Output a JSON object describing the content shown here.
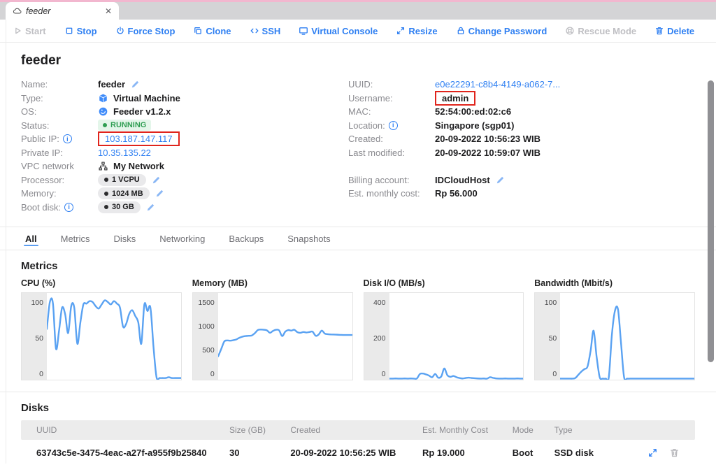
{
  "tab": {
    "title": "feeder",
    "close_glyph": "✕"
  },
  "toolbar": {
    "buttons": [
      {
        "label": "Start",
        "icon": "play-icon",
        "disabled": true
      },
      {
        "label": "Stop",
        "icon": "stop-icon"
      },
      {
        "label": "Force Stop",
        "icon": "power-icon"
      },
      {
        "label": "Clone",
        "icon": "clone-icon"
      },
      {
        "label": "SSH",
        "icon": "code-icon"
      },
      {
        "label": "Virtual Console",
        "icon": "monitor-icon"
      },
      {
        "label": "Resize",
        "icon": "resize-icon"
      },
      {
        "label": "Change Password",
        "icon": "lock-icon"
      },
      {
        "label": "Rescue Mode",
        "icon": "rescue-icon",
        "disabled": true
      },
      {
        "label": "Delete",
        "icon": "trash-icon"
      }
    ]
  },
  "header": {
    "title": "feeder"
  },
  "details": {
    "left": [
      {
        "label": "Name:",
        "value": "feeder",
        "edit": true
      },
      {
        "label": "Type:",
        "value": "Virtual Machine",
        "icon": "cube-icon"
      },
      {
        "label": "OS:",
        "value": "Feeder v1.2.x",
        "icon": "os-icon"
      },
      {
        "label": "Status:",
        "value": "RUNNING",
        "status": true
      },
      {
        "label": "Public IP:",
        "info": true,
        "value": "103.187.147.117",
        "link": true,
        "redbox": true
      },
      {
        "label": "Private IP:",
        "value": "10.35.135.22",
        "link": true
      },
      {
        "label": "VPC network",
        "value": "My Network",
        "icon": "network-icon"
      },
      {
        "label": "Processor:",
        "value": "1 VCPU",
        "pill": true,
        "edit": true
      },
      {
        "label": "Memory:",
        "value": "1024 MB",
        "pill": true,
        "edit": true
      },
      {
        "label": "Boot disk:",
        "info": true,
        "value": "30 GB",
        "pill": true,
        "edit": true
      }
    ],
    "right": [
      {
        "label": "UUID:",
        "value": "e0e22291-c8b4-4149-a062-7...",
        "link": true
      },
      {
        "label": "Username:",
        "value": "admin",
        "redbox": true
      },
      {
        "label": "MAC:",
        "value": "52:54:00:ed:02:c6"
      },
      {
        "label": "Location:",
        "info": true,
        "value": "Singapore (sgp01)"
      },
      {
        "label": "Created:",
        "value": "20-09-2022 10:56:23 WIB"
      },
      {
        "label": "Last modified:",
        "value": "20-09-2022 10:59:07 WIB"
      },
      {
        "gap": true
      },
      {
        "label": "Billing account:",
        "value": "IDCloudHost",
        "edit": true
      },
      {
        "label": "Est. monthly cost:",
        "value": "Rp 56.000"
      }
    ]
  },
  "tabs": [
    {
      "label": "All",
      "active": true
    },
    {
      "label": "Metrics"
    },
    {
      "label": "Disks"
    },
    {
      "label": "Networking"
    },
    {
      "label": "Backups"
    },
    {
      "label": "Snapshots"
    }
  ],
  "metrics_section": {
    "title": "Metrics"
  },
  "chart_data": [
    {
      "type": "line",
      "title": "CPU (%)",
      "ylabel": "",
      "yticks": [
        100,
        50,
        0
      ],
      "ylim": [
        0,
        106
      ],
      "grid": false,
      "legend": "none",
      "values": [
        62,
        95,
        93,
        38,
        60,
        88,
        80,
        57,
        90,
        88,
        44,
        70,
        92,
        93,
        96,
        95,
        90,
        87,
        92,
        97,
        95,
        92,
        96,
        93,
        88,
        65,
        68,
        80,
        85,
        78,
        70,
        44,
        92,
        84,
        88,
        40,
        3,
        2,
        2,
        2,
        3,
        2,
        2,
        2,
        2
      ]
    },
    {
      "type": "line",
      "title": "Memory (MB)",
      "ylabel": "",
      "yticks": [
        1500,
        1000,
        500,
        0
      ],
      "ylim": [
        0,
        1590
      ],
      "grid": false,
      "legend": "none",
      "values": [
        430,
        560,
        700,
        720,
        715,
        725,
        740,
        770,
        790,
        800,
        805,
        810,
        850,
        910,
        920,
        915,
        905,
        860,
        895,
        915,
        905,
        800,
        880,
        910,
        900,
        915,
        870,
        860,
        875,
        865,
        875,
        880,
        805,
        830,
        900,
        845,
        835,
        830,
        828,
        825,
        822,
        820,
        820,
        820,
        820
      ]
    },
    {
      "type": "line",
      "title": "Disk I/O (MB/s)",
      "ylabel": "",
      "yticks": [
        400,
        200,
        0
      ],
      "ylim": [
        0,
        425
      ],
      "grid": false,
      "legend": "none",
      "values": [
        5,
        5,
        6,
        5,
        5,
        6,
        5,
        6,
        5,
        6,
        28,
        30,
        26,
        20,
        12,
        28,
        10,
        16,
        55,
        22,
        14,
        18,
        12,
        8,
        6,
        8,
        10,
        8,
        7,
        6,
        5,
        6,
        5,
        12,
        9,
        6,
        5,
        5,
        6,
        5,
        5,
        5,
        6,
        5,
        5
      ]
    },
    {
      "type": "line",
      "title": "Bandwidth (Mbit/s)",
      "ylabel": "",
      "yticks": [
        100,
        50,
        0
      ],
      "ylim": [
        0,
        106
      ],
      "grid": false,
      "legend": "none",
      "values": [
        1,
        1,
        1,
        1,
        1,
        2,
        6,
        10,
        13,
        16,
        35,
        60,
        28,
        3,
        1,
        1,
        3,
        55,
        84,
        86,
        45,
        3,
        1,
        1,
        1,
        1,
        1,
        1,
        1,
        1,
        1,
        1,
        1,
        1,
        1,
        1,
        1,
        1,
        1,
        1,
        1,
        1,
        1,
        1,
        1
      ]
    }
  ],
  "disks_section": {
    "title": "Disks",
    "table": {
      "headers": [
        "UUID",
        "Size (GB)",
        "Created",
        "Est. Monthly Cost",
        "Mode",
        "Type",
        ""
      ],
      "rows": [
        {
          "uuid": "63743c5e-3475-4eac-a27f-a955f9b25840",
          "size": "30",
          "created": "20-09-2022 10:56:25 WIB",
          "cost": "Rp 19.000",
          "mode": "Boot",
          "type": "SSD disk"
        }
      ]
    }
  }
}
